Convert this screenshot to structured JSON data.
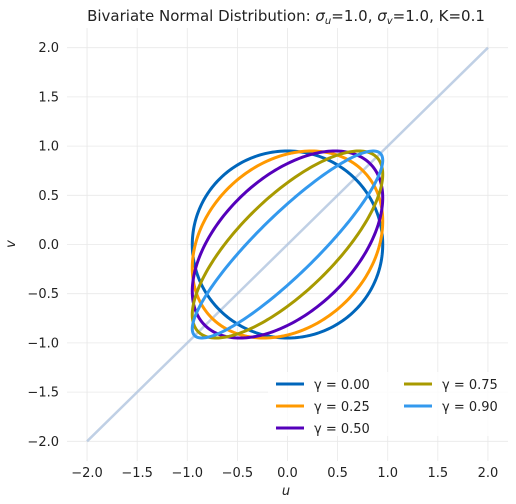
{
  "chart_data": {
    "type": "line",
    "title": "Bivariate Normal Distribution: σ_u=1.0, σ_v=1.0, K=0.1",
    "title_parts": {
      "prefix": "Bivariate Normal Distribution: ",
      "sigma_u": "σ",
      "sigma_u_sub": "u",
      "sigma_u_val": "=1.0, ",
      "sigma_v": "σ",
      "sigma_v_sub": "v",
      "sigma_v_val": "=1.0, K=0.1"
    },
    "xlabel": "u",
    "ylabel": "v",
    "xlim": [
      -2.2,
      2.2
    ],
    "ylim": [
      -2.2,
      2.2
    ],
    "xticks": [
      -2.0,
      -1.5,
      -1.0,
      -0.5,
      0.0,
      0.5,
      1.0,
      1.5,
      2.0
    ],
    "yticks": [
      -2.0,
      -1.5,
      -1.0,
      -0.5,
      0.0,
      0.5,
      1.0,
      1.5,
      2.0
    ],
    "xtick_labels": [
      "−2.0",
      "−1.5",
      "−1.0",
      "−0.5",
      "0.0",
      "0.5",
      "1.0",
      "1.5",
      "2.0"
    ],
    "ytick_labels": [
      "−2.0",
      "−1.5",
      "−1.0",
      "−0.5",
      "0.0",
      "0.5",
      "1.0",
      "1.5",
      "2.0"
    ],
    "grid": true,
    "legend_position": "lower-right",
    "reference_line": {
      "x": [
        -2.0,
        2.0
      ],
      "y": [
        -2.0,
        2.0
      ],
      "color": "#b0c4de"
    },
    "contour_level": 0.95,
    "series": [
      {
        "name": "γ = 0.00",
        "gamma": 0.0,
        "color": "#0066bb"
      },
      {
        "name": "γ = 0.25",
        "gamma": 0.25,
        "color": "#ff9900"
      },
      {
        "name": "γ = 0.50",
        "gamma": 0.5,
        "color": "#5500bb"
      },
      {
        "name": "γ = 0.75",
        "gamma": 0.75,
        "color": "#a89a00"
      },
      {
        "name": "γ = 0.90",
        "gamma": 0.9,
        "color": "#3399ee"
      }
    ]
  }
}
